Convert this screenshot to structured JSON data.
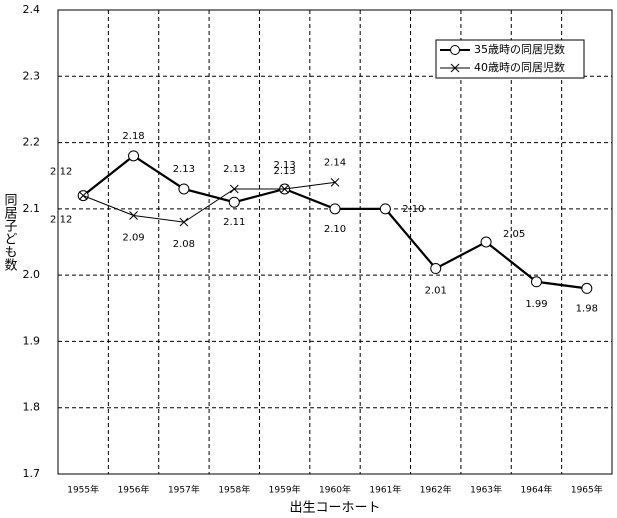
{
  "chart_data": {
    "type": "line",
    "xlabel": "出生コーホート",
    "ylabel": "同居子ども数",
    "categories": [
      "1955年",
      "1956年",
      "1957年",
      "1958年",
      "1959年",
      "1960年",
      "1961年",
      "1962年",
      "1963年",
      "1964年",
      "1965年"
    ],
    "series": [
      {
        "name": "35歳時の同居児数",
        "color": "#000000",
        "marker": "circle",
        "values": [
          2.12,
          2.18,
          2.13,
          2.11,
          2.13,
          2.1,
          2.1,
          2.01,
          2.05,
          1.99,
          1.98
        ],
        "value_labels": [
          "2.12",
          "2.18",
          "2.13",
          "2.11",
          "2.13",
          "2.10",
          "2.10",
          "2.01",
          "2.05",
          "1.99",
          "1.98"
        ]
      },
      {
        "name": "40歳時の同居児数",
        "color": "#000000",
        "marker": "x",
        "values": [
          2.12,
          2.09,
          2.08,
          2.13,
          2.13,
          2.14,
          null,
          null,
          null,
          null,
          null
        ],
        "value_labels": [
          "2.12",
          "2.09",
          "2.08",
          "2.13",
          "2.13",
          "2.14",
          null,
          null,
          null,
          null,
          null
        ]
      }
    ],
    "ylim": [
      1.7,
      2.4
    ],
    "yticks": [
      1.7,
      1.8,
      1.9,
      {
        "value": 2.0,
        "label": "2.0"
      },
      2.1,
      2.2,
      2.3,
      2.4
    ],
    "grid": true,
    "legend": "upper right"
  }
}
